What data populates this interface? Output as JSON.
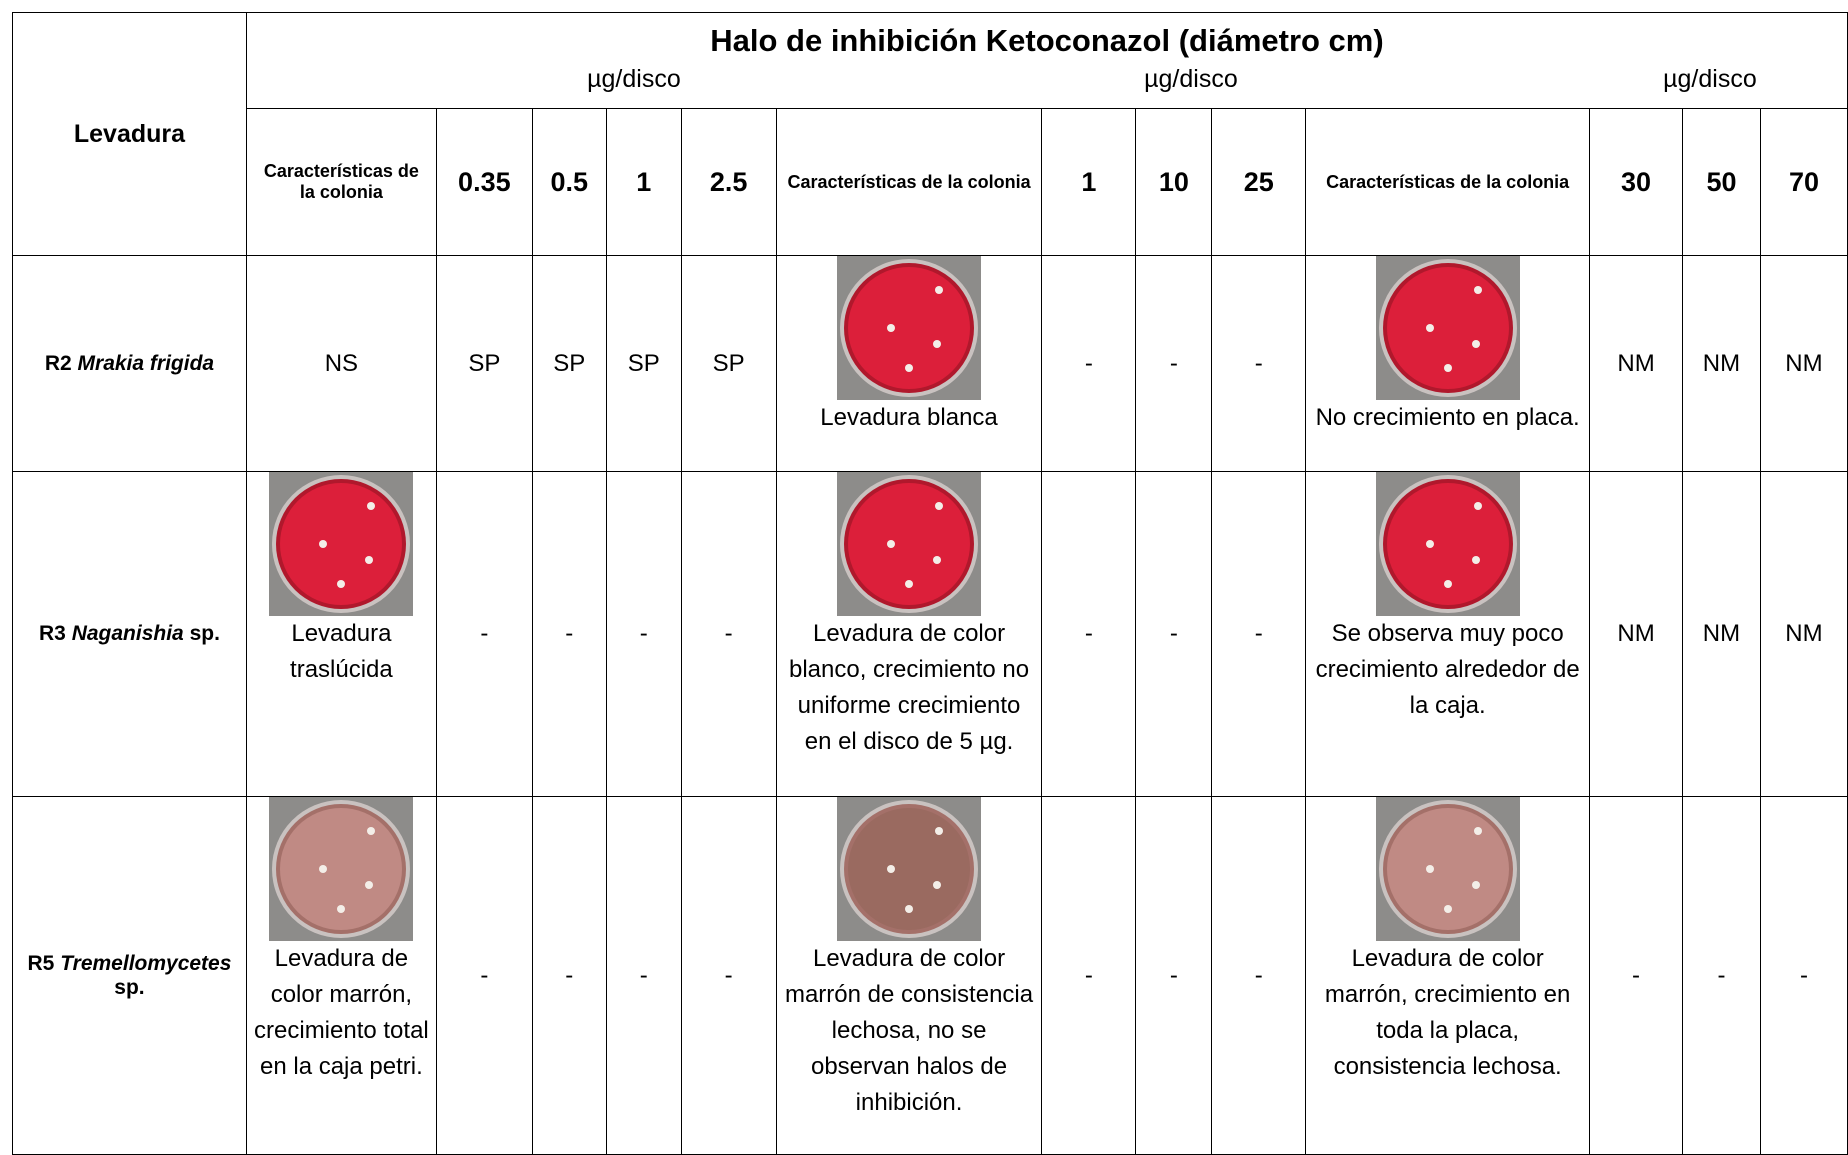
{
  "header": {
    "first_col": "Levadura",
    "title": "Halo de inhibición Ketoconazol (diámetro cm)",
    "unit_labels": [
      "µg/disco",
      "µg/disco",
      "µg/disco"
    ],
    "columns": [
      "Características de la colonia",
      "0.35",
      "0.5",
      "1",
      "2.5",
      "Características de la colonia",
      "1",
      "10",
      "25",
      "Características de la colonia",
      "30",
      "50",
      "70"
    ]
  },
  "rows": [
    {
      "name": {
        "prefix": "R2",
        "italic": "Mrakia frigida",
        "suffix": ""
      },
      "cells": [
        "NS",
        "SP",
        "SP",
        "SP",
        "SP",
        "Levadura blanca",
        "-",
        "-",
        "-",
        "No crecimiento en placa.",
        "NM",
        "NM",
        "NM"
      ]
    },
    {
      "name": {
        "prefix": "R3",
        "italic": "Naganishia",
        "suffix": "sp."
      },
      "cells": [
        "Levadura traslúcida",
        "-",
        "-",
        "-",
        "-",
        "Levadura de color blanco, crecimiento no uniforme crecimiento en el disco  de 5 µg.",
        "-",
        "-",
        "-",
        "Se observa muy poco crecimiento alrededor de la caja.",
        "NM",
        "NM",
        "NM"
      ]
    },
    {
      "name": {
        "prefix": "R5",
        "italic": "Tremellomycetes",
        "suffix": "sp."
      },
      "cells": [
        "Levadura de color marrón, crecimiento total en la caja petri.",
        "-",
        "-",
        "-",
        "-",
        "Levadura de color marrón de consistencia lechosa, no se observan halos de inhibición.",
        "-",
        "-",
        "-",
        "Levadura de color marrón, crecimiento en toda la placa, consistencia lechosa.",
        "-",
        "-",
        "-"
      ]
    }
  ]
}
